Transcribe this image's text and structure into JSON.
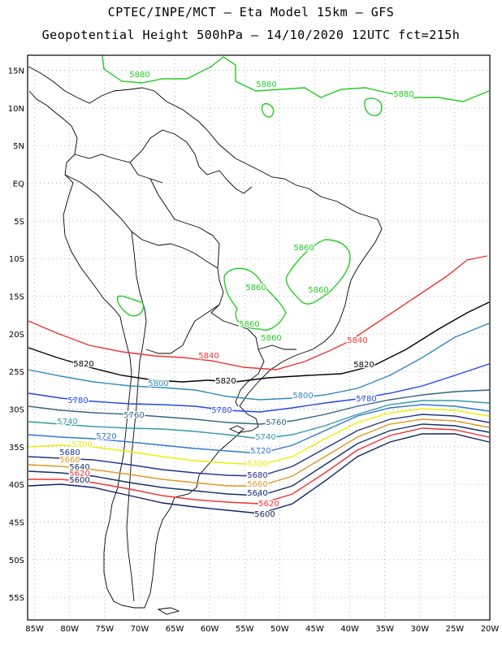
{
  "header": {
    "line1": "CPTEC/INPE/MCT –  Eta Model 15km – GFS",
    "line2": "Geopotential Height 500hPa – 14/10/2020 12UTC fct=215h"
  },
  "axes": {
    "lat_ticks": [
      "15N",
      "10N",
      "5N",
      "EQ",
      "5S",
      "10S",
      "15S",
      "20S",
      "25S",
      "30S",
      "35S",
      "40S",
      "45S",
      "50S",
      "55S"
    ],
    "lon_ticks": [
      "85W",
      "80W",
      "75W",
      "70W",
      "65W",
      "60W",
      "55W",
      "50W",
      "45W",
      "40W",
      "35W",
      "30W",
      "25W",
      "20W"
    ],
    "lon_range_deg": [
      -86,
      -20
    ],
    "lat_range_deg": [
      -58,
      17
    ]
  },
  "colors": {
    "c5880": "#22cc22",
    "c5860": "#22cc22",
    "c5840": "#ee3333",
    "c5820": "#000000",
    "c5800": "#3388bb",
    "c5780": "#2244ee",
    "c5760": "#336688",
    "c5740": "#3399aa",
    "c5720": "#3377cc",
    "c5700": "#eeee00",
    "c5680": "#223388",
    "c5660": "#dd9922",
    "c5640": "#113366",
    "c5620": "#ee3333",
    "c5600": "#112266",
    "coast": "#000000"
  },
  "contour_labels": [
    {
      "id": "l5880a",
      "text": "5880"
    },
    {
      "id": "l5880b",
      "text": "5880"
    },
    {
      "id": "l5880c",
      "text": "5880"
    },
    {
      "id": "l5860a",
      "text": "5860"
    },
    {
      "id": "l5860b",
      "text": "5860"
    },
    {
      "id": "l5860c",
      "text": "5860"
    },
    {
      "id": "l5860d",
      "text": "5860"
    },
    {
      "id": "l5860e",
      "text": "5860"
    },
    {
      "id": "l5840a",
      "text": "5840"
    },
    {
      "id": "l5840b",
      "text": "5840"
    },
    {
      "id": "l5820a",
      "text": "5820"
    },
    {
      "id": "l5820b",
      "text": "5820"
    },
    {
      "id": "l5820c",
      "text": "5820"
    },
    {
      "id": "l5800a",
      "text": "5800"
    },
    {
      "id": "l5800b",
      "text": "5800"
    },
    {
      "id": "l5780a",
      "text": "5780"
    },
    {
      "id": "l5780b",
      "text": "5780"
    },
    {
      "id": "l5780c",
      "text": "5780"
    },
    {
      "id": "l5760a",
      "text": "5760"
    },
    {
      "id": "l5760b",
      "text": "5760"
    },
    {
      "id": "l5740a",
      "text": "5740"
    },
    {
      "id": "l5740b",
      "text": "5740"
    },
    {
      "id": "l5720a",
      "text": "5720"
    },
    {
      "id": "l5720b",
      "text": "5720"
    },
    {
      "id": "l5700a",
      "text": "5700"
    },
    {
      "id": "l5700b",
      "text": "5700"
    },
    {
      "id": "l5680a",
      "text": "5680"
    },
    {
      "id": "l5680b",
      "text": "5680"
    },
    {
      "id": "l5660a",
      "text": "5660"
    },
    {
      "id": "l5660b",
      "text": "5660"
    },
    {
      "id": "l5640a",
      "text": "5640"
    },
    {
      "id": "l5640b",
      "text": "5640"
    },
    {
      "id": "l5620a",
      "text": "5620"
    },
    {
      "id": "l5620b",
      "text": "5620"
    },
    {
      "id": "l5600a",
      "text": "5600"
    },
    {
      "id": "l5600b",
      "text": "5600"
    }
  ]
}
